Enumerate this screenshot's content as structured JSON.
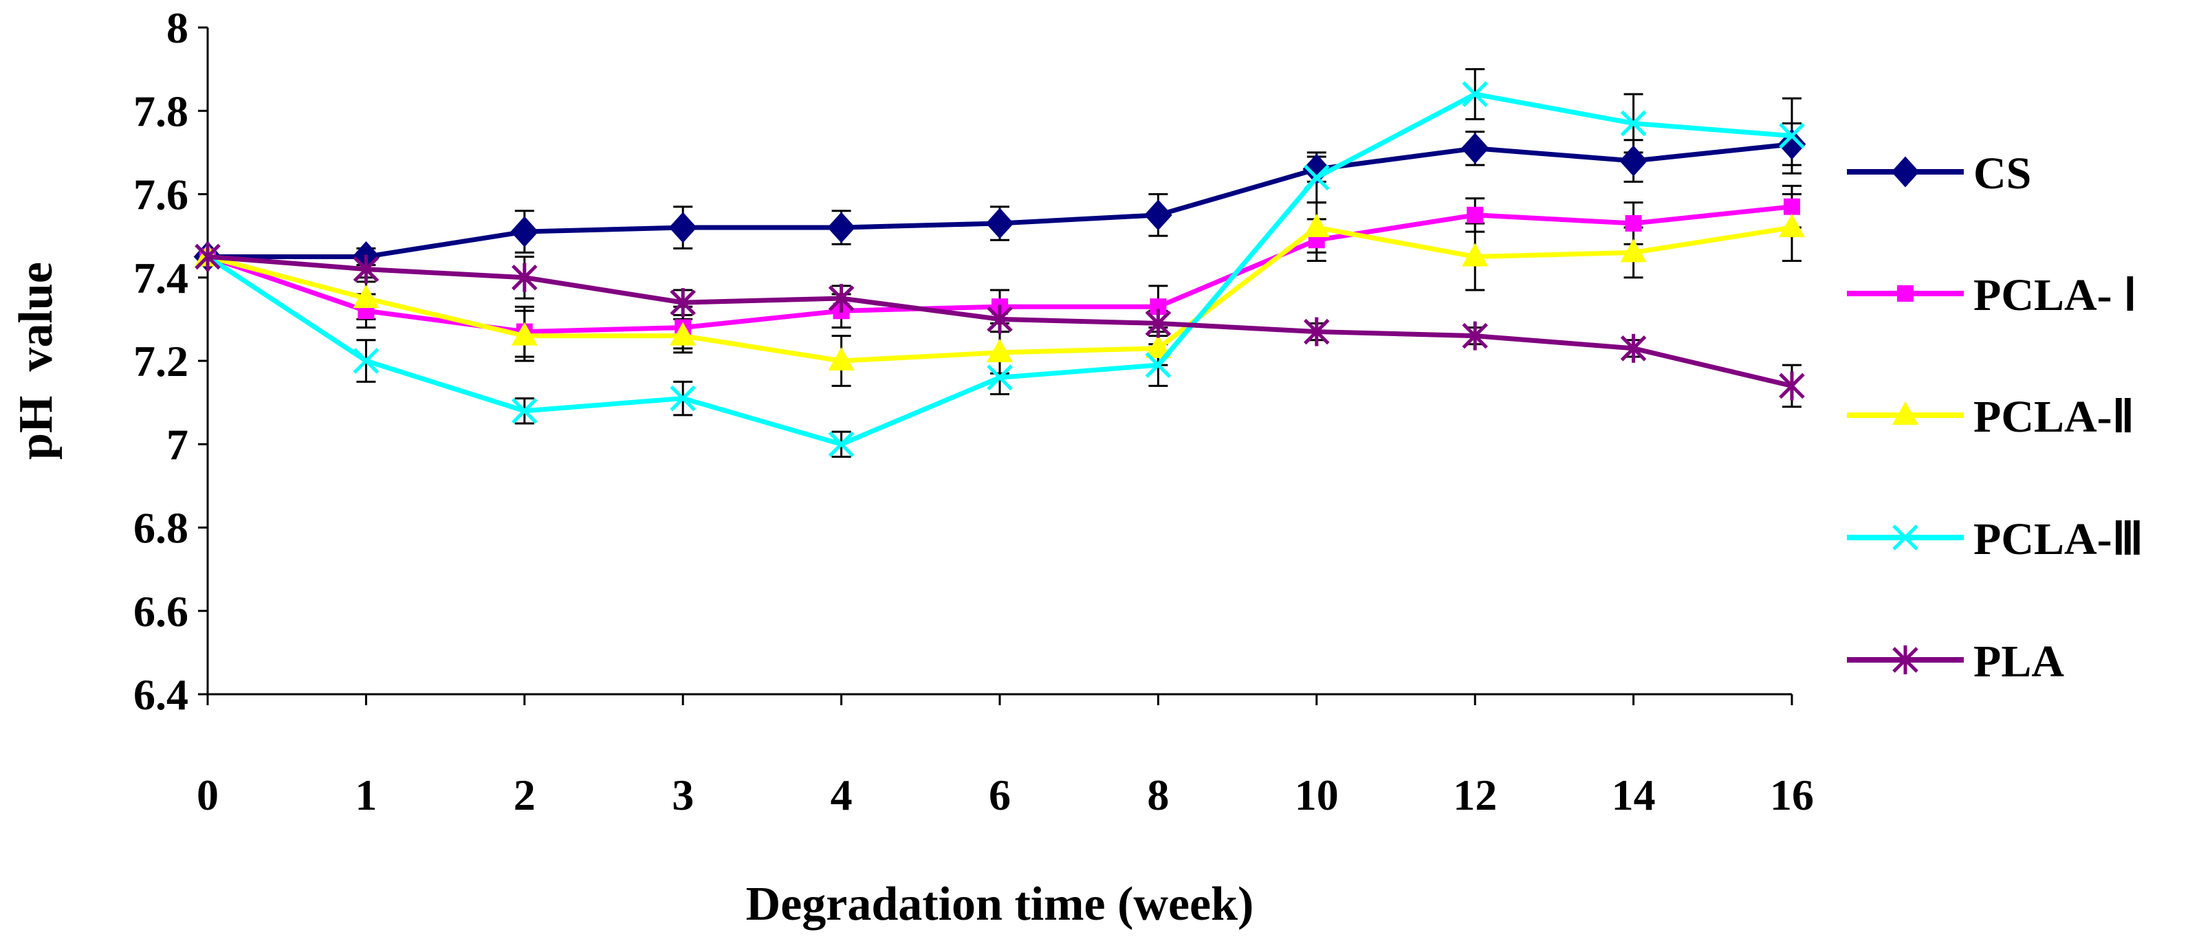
{
  "chart_data": {
    "type": "line",
    "title": "",
    "xlabel": "Degradation time (week)",
    "ylabel": "pH  value",
    "categories": [
      "0",
      "1",
      "2",
      "3",
      "4",
      "6",
      "8",
      "10",
      "12",
      "14",
      "16"
    ],
    "yticks": [
      "6.4",
      "6.6",
      "6.8",
      "7",
      "7.2",
      "7.4",
      "7.6",
      "7.8",
      "8"
    ],
    "ylim": [
      6.4,
      8.0
    ],
    "grid": false,
    "legend_position": "right",
    "series": [
      {
        "name": "CS",
        "color": "#000080",
        "marker": "diamond",
        "values": [
          7.45,
          7.45,
          7.51,
          7.52,
          7.52,
          7.53,
          7.55,
          7.66,
          7.71,
          7.68,
          7.72
        ],
        "errors": [
          0.0,
          0.02,
          0.05,
          0.05,
          0.04,
          0.04,
          0.05,
          0.03,
          0.04,
          0.05,
          0.05
        ]
      },
      {
        "name": "PCLA- Ⅰ",
        "color": "#ff00ff",
        "marker": "square",
        "values": [
          7.45,
          7.32,
          7.27,
          7.28,
          7.32,
          7.33,
          7.33,
          7.49,
          7.55,
          7.53,
          7.57
        ],
        "errors": [
          0.0,
          0.04,
          0.06,
          0.05,
          0.04,
          0.04,
          0.05,
          0.05,
          0.04,
          0.05,
          0.05
        ]
      },
      {
        "name": "PCLA-Ⅱ",
        "color": "#ffff00",
        "marker": "triangle",
        "values": [
          7.45,
          7.35,
          7.26,
          7.26,
          7.2,
          7.22,
          7.23,
          7.52,
          7.45,
          7.46,
          7.52
        ],
        "errors": [
          0.0,
          0.05,
          0.06,
          0.04,
          0.06,
          0.05,
          0.04,
          0.06,
          0.08,
          0.06,
          0.08
        ]
      },
      {
        "name": "PCLA-Ⅲ",
        "color": "#00ffff",
        "marker": "x",
        "values": [
          7.45,
          7.2,
          7.08,
          7.11,
          7.0,
          7.16,
          7.19,
          7.64,
          7.84,
          7.77,
          7.74
        ],
        "errors": [
          0.0,
          0.05,
          0.03,
          0.04,
          0.03,
          0.04,
          0.05,
          0.06,
          0.06,
          0.07,
          0.09
        ]
      },
      {
        "name": "PLA",
        "color": "#800080",
        "marker": "star",
        "values": [
          7.45,
          7.42,
          7.4,
          7.34,
          7.35,
          7.3,
          7.29,
          7.27,
          7.26,
          7.23,
          7.14
        ],
        "errors": [
          0.0,
          0.03,
          0.05,
          0.03,
          0.03,
          0.03,
          0.03,
          0.02,
          0.02,
          0.02,
          0.05
        ]
      }
    ]
  }
}
